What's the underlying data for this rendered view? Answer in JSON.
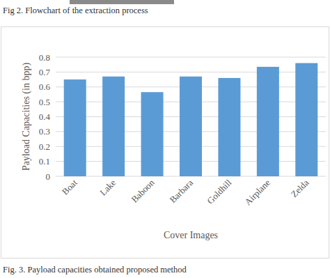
{
  "chart_data": {
    "type": "bar",
    "x_label": "Cover Images",
    "y_label": "Payload Capacities (in bpp)",
    "annotations": [
      "Fig 2.   Flowchart of the extraction process",
      "Fig. 3.   Payload capacities obtained proposed method"
    ],
    "categories": [
      "Boat",
      "Lake",
      "Baboon",
      "Barbara",
      "Goldhill",
      "Airplane",
      "Zelda"
    ],
    "values": [
      0.65,
      0.67,
      0.565,
      0.67,
      0.66,
      0.735,
      0.76
    ],
    "color": "#5b9bd5",
    "ylim": [
      0,
      0.8
    ],
    "yticks": [
      0,
      0.1,
      0.2,
      0.3,
      0.4,
      0.5,
      0.6,
      0.7,
      0.8
    ],
    "grid": true
  }
}
